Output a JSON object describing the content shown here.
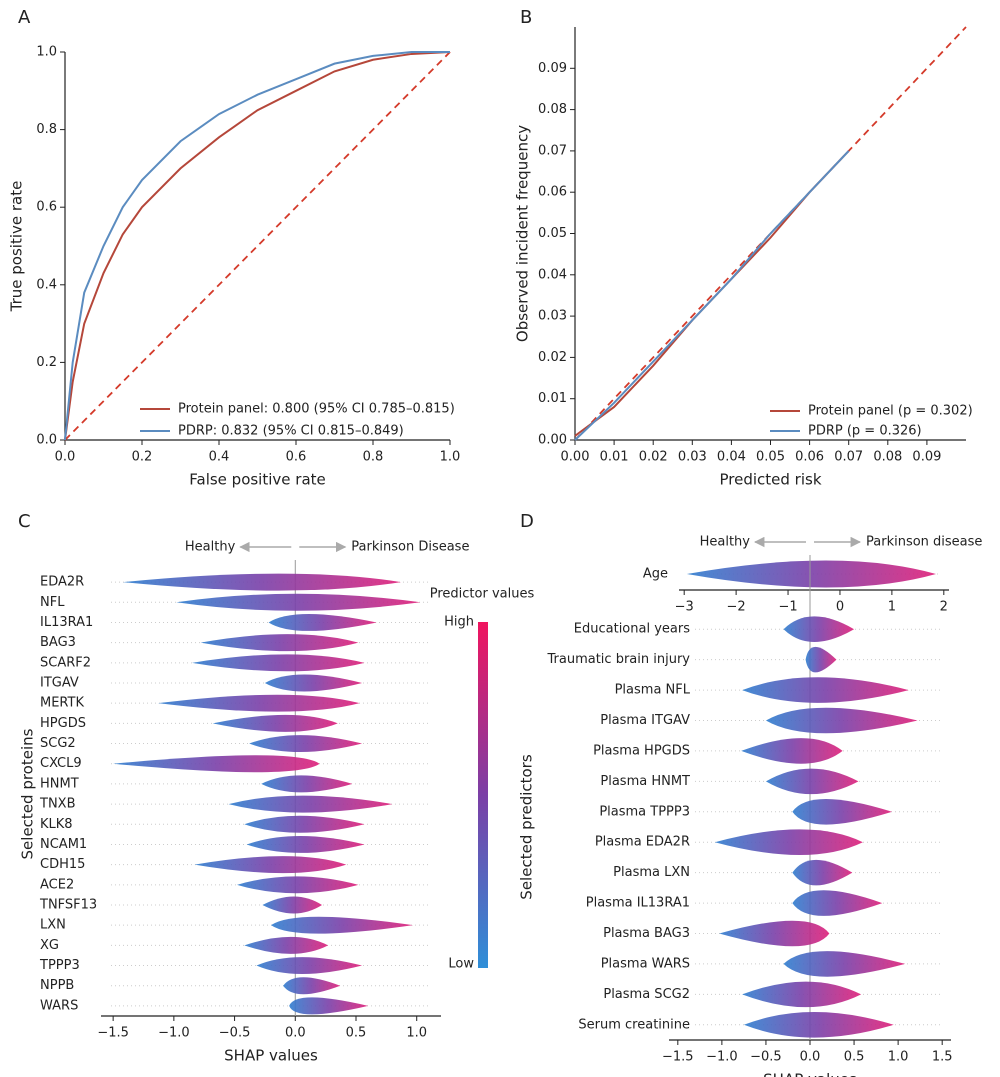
{
  "chart_data": [
    {
      "panel": "A",
      "type": "line",
      "xlabel": "False positive rate",
      "ylabel": "True positive rate",
      "x": [
        0,
        0.02,
        0.05,
        0.1,
        0.15,
        0.2,
        0.3,
        0.4,
        0.5,
        0.6,
        0.7,
        0.8,
        0.9,
        1
      ],
      "series": [
        {
          "name": "Protein panel: 0.800 (95% CI 0.785–0.815)",
          "color": "#b5473a",
          "values": [
            0,
            0.15,
            0.3,
            0.43,
            0.53,
            0.6,
            0.7,
            0.78,
            0.85,
            0.9,
            0.95,
            0.98,
            0.995,
            1
          ]
        },
        {
          "name": "PDRP: 0.832 (95% CI 0.815–0.849)",
          "color": "#5b8cc0",
          "values": [
            0,
            0.2,
            0.38,
            0.5,
            0.6,
            0.67,
            0.77,
            0.84,
            0.89,
            0.93,
            0.97,
            0.99,
            1,
            1
          ]
        }
      ],
      "xlim": [
        0,
        1
      ],
      "ylim": [
        0,
        1
      ],
      "xticks": [
        {
          "value": 0,
          "label": "0.0"
        },
        0.2,
        0.4,
        0.6,
        0.8,
        {
          "value": 1,
          "label": "1.0"
        }
      ],
      "yticks": [
        {
          "value": 0,
          "label": "0.0"
        },
        0.2,
        0.4,
        0.6,
        0.8,
        {
          "value": 1,
          "label": "1.0"
        }
      ],
      "reference_line": true
    },
    {
      "panel": "B",
      "type": "line",
      "xlabel": "Predicted risk",
      "ylabel": "Observed incident frequency",
      "x": [
        0,
        0.01,
        0.02,
        0.03,
        0.04,
        0.05,
        0.06,
        0.07
      ],
      "series": [
        {
          "name": "Protein panel (p = 0.302)",
          "color": "#b5473a",
          "values": [
            0.001,
            0.008,
            0.018,
            0.029,
            0.039,
            0.049,
            0.06,
            0.07
          ]
        },
        {
          "name": "PDRP (p = 0.326)",
          "color": "#5b8cc0",
          "values": [
            0,
            0.009,
            0.019,
            0.029,
            0.039,
            0.05,
            0.06,
            0.07
          ]
        }
      ],
      "xlim": [
        0,
        0.1
      ],
      "ylim": [
        0,
        0.1
      ],
      "xticks": [
        {
          "value": 0,
          "label": "0.00"
        },
        0.01,
        0.02,
        0.03,
        0.04,
        0.05,
        0.06,
        0.07,
        0.08,
        0.09
      ],
      "yticks": [
        {
          "value": 0,
          "label": "0.00"
        },
        0.01,
        0.02,
        0.03,
        0.04,
        0.05,
        0.06,
        0.07,
        0.08,
        0.09
      ],
      "reference_line": true
    },
    {
      "panel": "C",
      "type": "beeswarm",
      "xlabel": "SHAP values",
      "ylabel": "Selected proteins",
      "healthy_label": "Healthy",
      "disease_label": "Parkinson Disease",
      "colorbar_title": "Predictor values",
      "colorbar_high": "High",
      "colorbar_low": "Low",
      "categories": [
        "EDA2R",
        "NFL",
        "IL13RA1",
        "BAG3",
        "SCARF2",
        "ITGAV",
        "MERTK",
        "HPGDS",
        "SCG2",
        "CXCL9",
        "HNMT",
        "TNXB",
        "KLK8",
        "NCAM1",
        "CDH15",
        "ACE2",
        "TNFSF13",
        "LXN",
        "XG",
        "TPPP3",
        "NPPB",
        "WARS"
      ],
      "low": [
        -1.42,
        -0.98,
        -0.22,
        -0.78,
        -0.85,
        -0.25,
        -1.13,
        -0.68,
        -0.38,
        -1.5,
        -0.28,
        -0.55,
        -0.42,
        -0.4,
        -0.83,
        -0.48,
        -0.27,
        -0.2,
        -0.42,
        -0.32,
        -0.1,
        -0.05
      ],
      "high": [
        0.87,
        1.03,
        0.67,
        0.52,
        0.57,
        0.55,
        0.53,
        0.35,
        0.55,
        0.2,
        0.47,
        0.8,
        0.57,
        0.57,
        0.42,
        0.52,
        0.22,
        0.97,
        0.27,
        0.55,
        0.37,
        0.6
      ],
      "xlim": [
        -1.6,
        1.2
      ],
      "xticks": [
        {
          "value": -1.5,
          "label": "−1.5"
        },
        {
          "value": -1,
          "label": "−1.0"
        },
        {
          "value": -0.5,
          "label": "−0.5"
        },
        {
          "value": 0,
          "label": "0.0"
        },
        0.5,
        {
          "value": 1,
          "label": "1.0"
        }
      ]
    },
    {
      "panel": "D",
      "type": "beeswarm",
      "healthy_label": "Healthy",
      "disease_label": "Parkinson disease",
      "categories": [
        "Age"
      ],
      "low": [
        -2.95
      ],
      "high": [
        1.85
      ],
      "xlim": [
        -3.1,
        2.1
      ],
      "xticks": [
        {
          "value": -3,
          "label": "−3"
        },
        {
          "value": -2,
          "label": "−2"
        },
        {
          "value": -1,
          "label": "−1"
        },
        0,
        1,
        2
      ]
    },
    {
      "type": "beeswarm",
      "xlabel": "SHAP values",
      "ylabel": "Selected predictors",
      "categories": [
        "Educational years",
        "Traumatic brain injury",
        "Plasma NFL",
        "Plasma ITGAV",
        "Plasma HPGDS",
        "Plasma HNMT",
        "Plasma TPPP3",
        "Plasma EDA2R",
        "Plasma LXN",
        "Plasma IL13RA1",
        "Plasma BAG3",
        "Plasma WARS",
        "Plasma SCG2",
        "Serum creatinine"
      ],
      "low": [
        -0.3,
        -0.05,
        -0.77,
        -0.5,
        -0.78,
        -0.5,
        -0.2,
        -1.08,
        -0.2,
        -0.2,
        -1.03,
        -0.3,
        -0.77,
        -0.75
      ],
      "high": [
        0.5,
        0.3,
        1.12,
        1.22,
        0.37,
        0.55,
        0.93,
        0.6,
        0.48,
        0.82,
        0.22,
        1.08,
        0.58,
        0.95
      ],
      "xlim": [
        -1.6,
        1.6
      ],
      "xticks": [
        {
          "value": -1.5,
          "label": "−1.5"
        },
        {
          "value": -1,
          "label": "−1.0"
        },
        {
          "value": -0.5,
          "label": "−0.5"
        },
        {
          "value": 0,
          "label": "0.0"
        },
        0.5,
        {
          "value": 1,
          "label": "1.0"
        },
        1.5
      ]
    }
  ]
}
